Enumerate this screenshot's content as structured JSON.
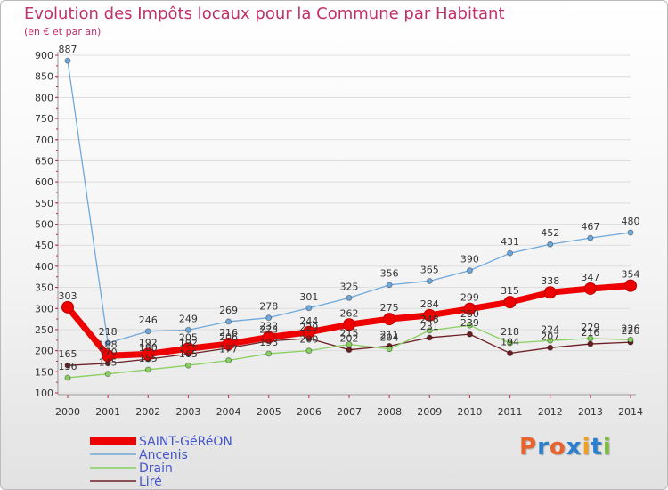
{
  "title": "Evolution des Impôts locaux pour la Commune par Habitant",
  "subtitle": "(en € et par an)",
  "logo": {
    "letters": [
      "P",
      "r",
      "o",
      "x",
      "i",
      "t",
      "i"
    ],
    "colors": [
      "#e8632b",
      "#2a7fd0",
      "#e8632b",
      "#2a7fd0",
      "#f0a020",
      "#2a7fd0",
      "#7bbf3a"
    ]
  },
  "colors": {
    "title": "#c0306a",
    "axis": "#cc2244",
    "grid": "#dddddd"
  },
  "chart_data": {
    "type": "line",
    "title": "Evolution des Impôts locaux pour la Commune par Habitant",
    "subtitle": "(en € et par an)",
    "xlabel": "",
    "ylabel": "",
    "categories": [
      "2000",
      "2001",
      "2002",
      "2003",
      "2004",
      "2005",
      "2006",
      "2007",
      "2008",
      "2009",
      "2010",
      "2011",
      "2012",
      "2013",
      "2014"
    ],
    "ylim": [
      100,
      900
    ],
    "yticks": [
      100,
      150,
      200,
      250,
      300,
      350,
      400,
      450,
      500,
      550,
      600,
      650,
      700,
      750,
      800,
      850,
      900
    ],
    "grid": "horizontal",
    "legend_position": "bottom-left",
    "series": [
      {
        "name": "SAINT-GéRéON",
        "color": "#ee0000",
        "values": [
          303,
          188,
          192,
          205,
          216,
          232,
          244,
          262,
          275,
          284,
          299,
          315,
          338,
          347,
          354
        ],
        "labels": [
          "303",
          "188",
          "192",
          "205",
          "216",
          "232",
          "244",
          "262",
          "275",
          "284",
          "299",
          "315",
          "338",
          "347",
          "354"
        ]
      },
      {
        "name": "Ancenis",
        "color": "#6fa9dc",
        "values": [
          887,
          218,
          246,
          249,
          269,
          278,
          301,
          325,
          356,
          365,
          390,
          431,
          452,
          467,
          480
        ],
        "labels": [
          "887",
          "218",
          "246",
          "249",
          "269",
          "278",
          "301",
          "325",
          "356",
          "365",
          "390",
          "431",
          "452",
          "467",
          "480"
        ]
      },
      {
        "name": "Drain",
        "color": "#88d060",
        "values": [
          136,
          145,
          155,
          165,
          177,
          193,
          200,
          215,
          204,
          248,
          260,
          218,
          224,
          229,
          226
        ],
        "labels": [
          "136",
          "145",
          "155",
          "165",
          "177",
          "193",
          "200",
          "215",
          "204",
          "248",
          "260",
          "218",
          "224",
          "229",
          "226"
        ]
      },
      {
        "name": "Liré",
        "color": "#6b1f22",
        "values": [
          165,
          170,
          180,
          192,
          206,
          223,
          229,
          202,
          211,
          231,
          239,
          194,
          207,
          216,
          220
        ],
        "labels": [
          "165",
          "170",
          "180",
          "192",
          "206",
          "223",
          "229",
          "202",
          "211",
          "231",
          "239",
          "194",
          "207",
          "216",
          "220"
        ]
      }
    ]
  }
}
